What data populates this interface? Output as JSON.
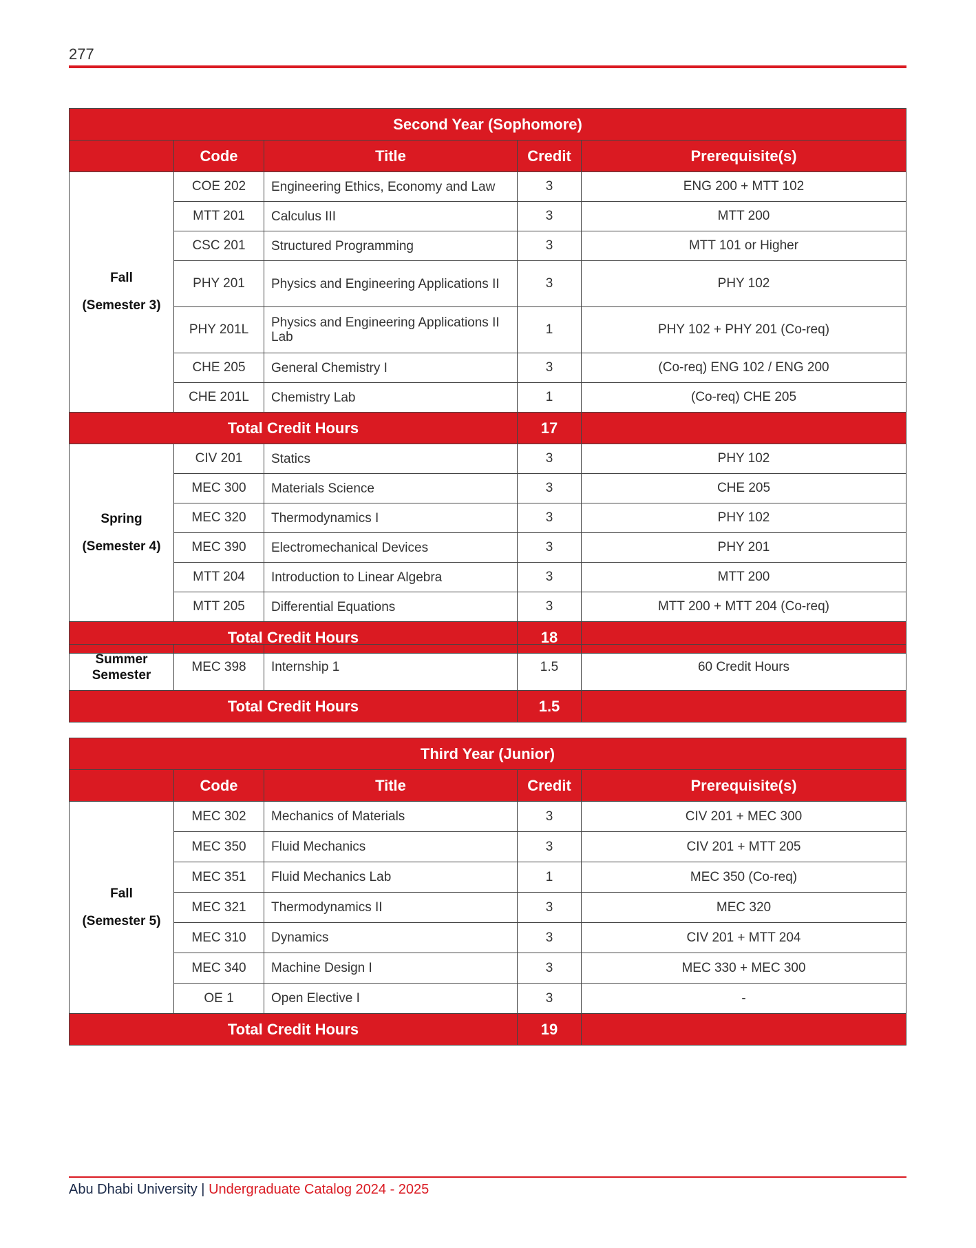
{
  "page_number": "277",
  "headers": {
    "code": "Code",
    "title": "Title",
    "credit": "Credit",
    "prereq": "Prerequisite(s)"
  },
  "total_label": "Total Credit Hours",
  "second_year": {
    "title": "Second Year (Sophomore)",
    "fall": {
      "label": "Fall",
      "sub": "(Semester 3)",
      "total": "17",
      "rows": [
        {
          "code": "COE 202",
          "title": "Engineering Ethics, Economy and Law",
          "credit": "3",
          "prereq": "ENG 200 + MTT 102"
        },
        {
          "code": "MTT 201",
          "title": "Calculus III",
          "credit": "3",
          "prereq": "MTT 200"
        },
        {
          "code": "CSC 201",
          "title": "Structured Programming",
          "credit": "3",
          "prereq": "MTT 101 or Higher"
        },
        {
          "code": "PHY 201",
          "title": "Physics and Engineering Applications II",
          "credit": "3",
          "prereq": "PHY 102"
        },
        {
          "code": "PHY 201L",
          "title": "Physics and Engineering Applications II Lab",
          "credit": "1",
          "prereq": "PHY 102 + PHY 201 (Co-req)"
        },
        {
          "code": "CHE 205",
          "title": "General Chemistry I",
          "credit": "3",
          "prereq": "(Co-req) ENG 102 / ENG 200"
        },
        {
          "code": "CHE 201L",
          "title": "Chemistry Lab",
          "credit": "1",
          "prereq": "(Co-req) CHE 205"
        }
      ]
    },
    "spring": {
      "label": "Spring",
      "sub": "(Semester 4)",
      "total": "18",
      "rows": [
        {
          "code": "CIV 201",
          "title": "Statics",
          "credit": "3",
          "prereq": "PHY 102"
        },
        {
          "code": "MEC 300",
          "title": "Materials Science",
          "credit": "3",
          "prereq": "CHE 205"
        },
        {
          "code": "MEC 320",
          "title": "Thermodynamics I",
          "credit": "3",
          "prereq": "PHY 102"
        },
        {
          "code": "MEC 390",
          "title": "Electromechanical Devices",
          "credit": "3",
          "prereq": "PHY 201"
        },
        {
          "code": "MTT 204",
          "title": "Introduction to Linear Algebra",
          "credit": "3",
          "prereq": "MTT 200"
        },
        {
          "code": "MTT 205",
          "title": "Differential Equations",
          "credit": "3",
          "prereq": "MTT 200 + MTT 204 (Co-req)"
        }
      ]
    },
    "summer": {
      "label1": "Summer",
      "label2": "Semester",
      "code": "MEC 398",
      "title": "Internship 1",
      "credit": "1.5",
      "prereq": "60 Credit Hours",
      "total": "1.5"
    }
  },
  "third_year": {
    "title": "Third Year (Junior)",
    "fall": {
      "label": "Fall",
      "sub": "(Semester 5)",
      "total": "19",
      "rows": [
        {
          "code": "MEC 302",
          "title": "Mechanics of Materials",
          "credit": "3",
          "prereq": "CIV 201 + MEC 300"
        },
        {
          "code": "MEC 350",
          "title": "Fluid Mechanics",
          "credit": "3",
          "prereq": "CIV 201 + MTT 205"
        },
        {
          "code": "MEC 351",
          "title": "Fluid Mechanics Lab",
          "credit": "1",
          "prereq": "MEC 350 (Co-req)"
        },
        {
          "code": "MEC 321",
          "title": "Thermodynamics II",
          "credit": "3",
          "prereq": "MEC 320"
        },
        {
          "code": "MEC 310",
          "title": "Dynamics",
          "credit": "3",
          "prereq": "CIV 201 + MTT 204"
        },
        {
          "code": "MEC 340",
          "title": "Machine Design I",
          "credit": "3",
          "prereq": "MEC 330 + MEC 300"
        },
        {
          "code": "OE 1",
          "title": "Open Elective I",
          "credit": "3",
          "prereq": "-"
        }
      ]
    }
  },
  "footer": {
    "university": "Abu Dhabi University",
    "separator": " | ",
    "catalog": "Undergraduate Catalog 2024 - 2025"
  },
  "colors": {
    "accent": "#da1a22",
    "footer_text": "#1c2b4a"
  }
}
